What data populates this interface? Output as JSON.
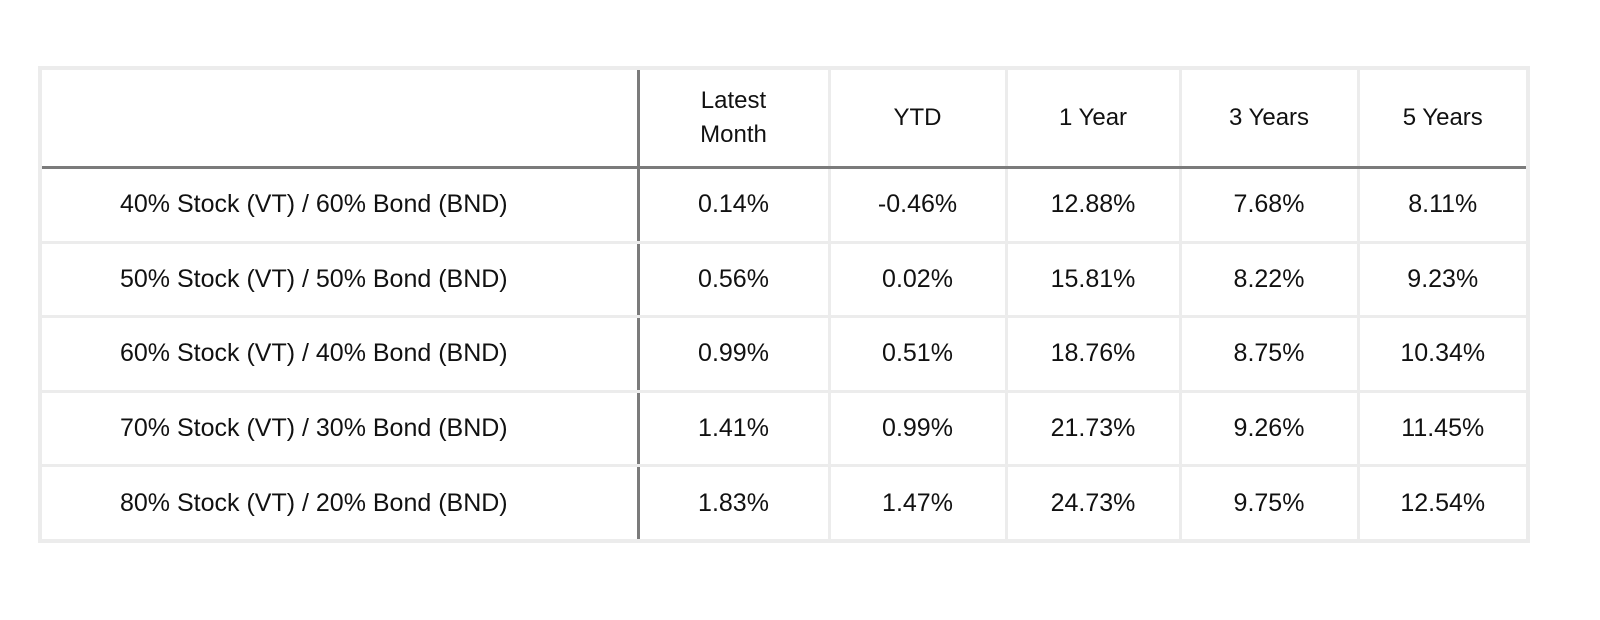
{
  "table": {
    "headers": [
      "",
      "Latest\nMonth",
      "YTD",
      "1 Year",
      "3 Years",
      "5 Years"
    ],
    "rows": [
      {
        "label": "40% Stock (VT) / 60% Bond (BND)",
        "values": [
          "0.14%",
          "-0.46%",
          "12.88%",
          "7.68%",
          "8.11%"
        ]
      },
      {
        "label": "50% Stock (VT) / 50% Bond (BND)",
        "values": [
          "0.56%",
          "0.02%",
          "15.81%",
          "8.22%",
          "9.23%"
        ]
      },
      {
        "label": "60% Stock (VT) / 40% Bond (BND)",
        "values": [
          "0.99%",
          "0.51%",
          "18.76%",
          "8.75%",
          "10.34%"
        ]
      },
      {
        "label": "70% Stock (VT) / 30% Bond (BND)",
        "values": [
          "1.41%",
          "0.99%",
          "21.73%",
          "9.26%",
          "11.45%"
        ]
      },
      {
        "label": "80% Stock (VT) / 20% Bond (BND)",
        "values": [
          "1.83%",
          "1.47%",
          "24.73%",
          "9.75%",
          "12.54%"
        ]
      }
    ]
  }
}
